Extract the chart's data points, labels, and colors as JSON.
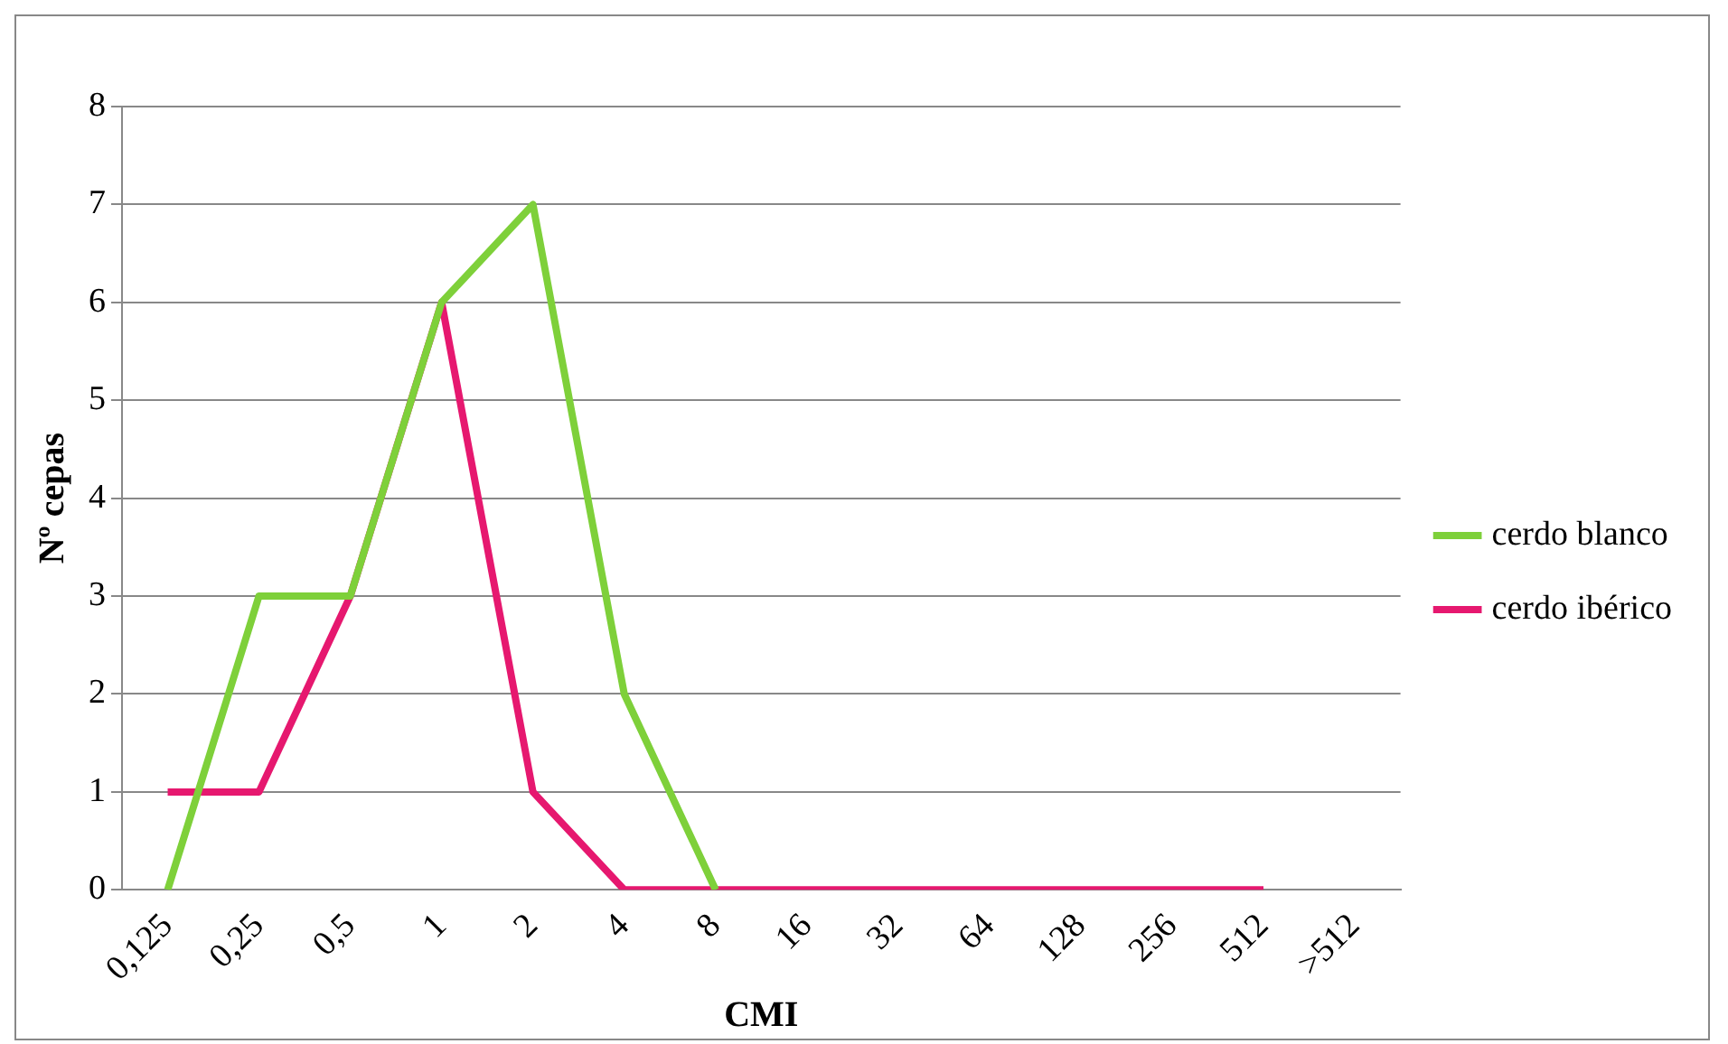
{
  "chart_data": {
    "type": "line",
    "xlabel": "CMI",
    "ylabel": "Nº cepas",
    "categories": [
      "0,125",
      "0,25",
      "0,5",
      "1",
      "2",
      "4",
      "8",
      "16",
      "32",
      "64",
      "128",
      "256",
      "512",
      ">512"
    ],
    "series": [
      {
        "name": "cerdo blanco",
        "color": "#7ed03a",
        "values": [
          0,
          3,
          3,
          6,
          7,
          2,
          0,
          null,
          null,
          null,
          null,
          null,
          null,
          null
        ]
      },
      {
        "name": "cerdo ibérico",
        "color": "#e6186f",
        "values": [
          1,
          1,
          3,
          6,
          1,
          0,
          0,
          0,
          0,
          0,
          0,
          0,
          0,
          null
        ]
      }
    ],
    "ylim": [
      0,
      8
    ],
    "yticks": [
      0,
      1,
      2,
      3,
      4,
      5,
      6,
      7,
      8
    ],
    "grid": "y",
    "legend": "right",
    "marker": "none",
    "line_style": "solid"
  }
}
